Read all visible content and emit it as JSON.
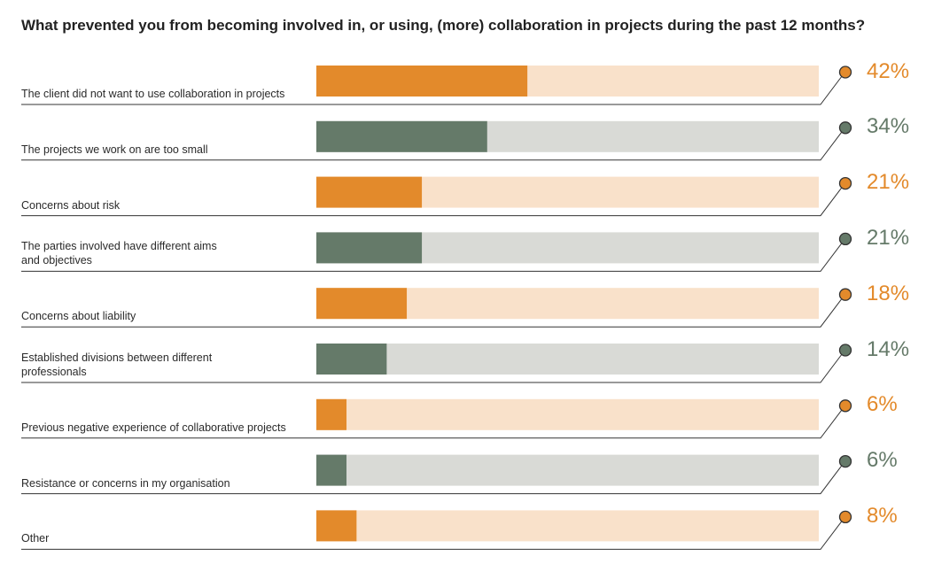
{
  "colors": {
    "orange": "#E38A2B",
    "orange_track": "#F9E1CA",
    "green": "#657A69",
    "green_track": "#D9DAD6",
    "rule": "#333333"
  },
  "chart_data": {
    "type": "bar",
    "orientation": "horizontal",
    "title": "What prevented you from becoming involved in, or using, (more) collaboration in projects during the past 12 months?",
    "xlim": [
      0,
      100
    ],
    "categories": [
      "The client did not want to use collaboration in projects",
      "The projects we work on are too small",
      "Concerns about risk",
      "The parties involved have different aims\nand objectives",
      "Concerns about liability",
      "Established divisions between different\nprofessionals",
      "Previous negative experience of collaborative projects",
      "Resistance or concerns in my organisation",
      "Other"
    ],
    "values": [
      42,
      34,
      21,
      21,
      18,
      14,
      6,
      6,
      8
    ],
    "value_labels": [
      "42%",
      "34%",
      "21%",
      "21%",
      "18%",
      "14%",
      "6%",
      "6%",
      "8%"
    ],
    "bar_colors": [
      "orange",
      "green",
      "orange",
      "green",
      "orange",
      "green",
      "orange",
      "green",
      "orange"
    ]
  }
}
